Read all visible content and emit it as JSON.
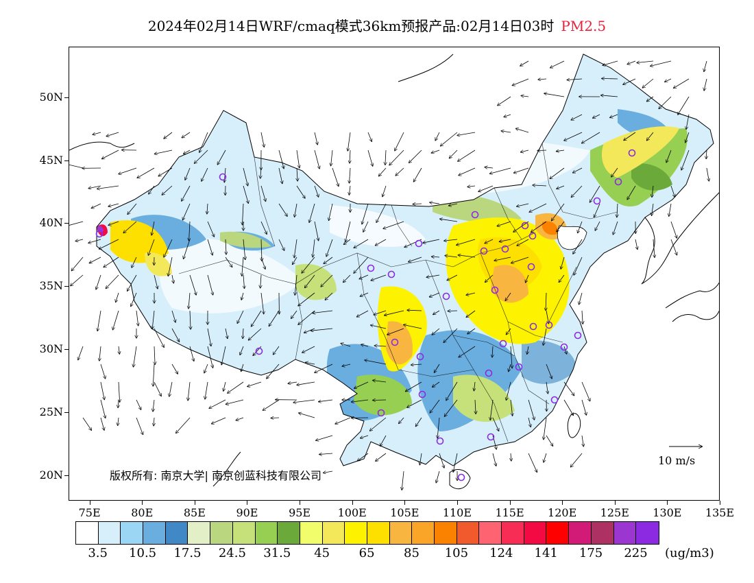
{
  "title": {
    "main": "2024年02月14日WRF/cmaq模式36km预报产品:02月14日03时",
    "pollutant": "PM2.5"
  },
  "axes": {
    "lat_labels": [
      "50N",
      "45N",
      "40N",
      "35N",
      "30N",
      "25N",
      "20N"
    ],
    "lat_values": [
      50,
      45,
      40,
      35,
      30,
      25,
      20
    ],
    "lon_labels": [
      "75E",
      "80E",
      "85E",
      "90E",
      "95E",
      "100E",
      "105E",
      "110E",
      "115E",
      "120E",
      "125E",
      "130E",
      "135E"
    ],
    "lon_values": [
      75,
      80,
      85,
      90,
      95,
      100,
      105,
      110,
      115,
      120,
      125,
      130,
      135
    ],
    "lon_range": [
      73,
      135
    ],
    "lat_range": [
      18,
      54
    ]
  },
  "legend": {
    "colors": [
      "#ffffff",
      "#d7effb",
      "#9bd6f5",
      "#6aaee0",
      "#4189c6",
      "#e2efc7",
      "#bad67e",
      "#c6e07a",
      "#96cf52",
      "#6aa93a",
      "#f1fd6a",
      "#f3e85a",
      "#fdf200",
      "#fde000",
      "#f8b641",
      "#faa528",
      "#fa8200",
      "#f15a2c",
      "#fe6371",
      "#f72d56",
      "#f30a43",
      "#fe0000",
      "#d21b76",
      "#ae3163",
      "#9b36d0",
      "#8b2ae0"
    ],
    "labels": [
      "3.5",
      "10.5",
      "17.5",
      "24.5",
      "31.5",
      "45",
      "65",
      "85",
      "105",
      "124",
      "141",
      "175",
      "225"
    ],
    "unit": "(ug/m3)"
  },
  "copyright": "版权所有: 南京大学| 南京创蓝科技有限公司",
  "wind_reference": "10 m/s"
}
